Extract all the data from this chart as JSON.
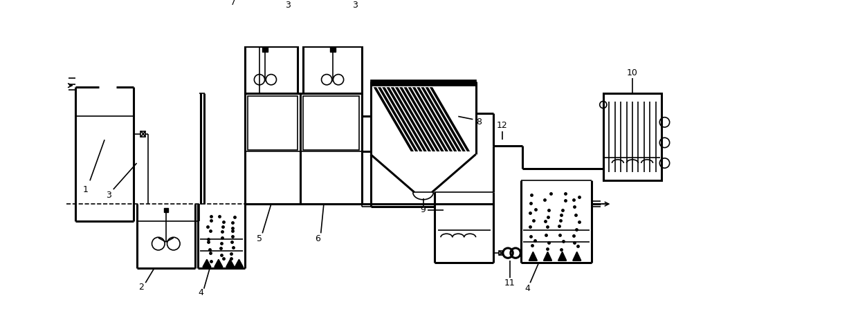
{
  "bg_color": "#ffffff",
  "lw": 1.2,
  "lw2": 2.2,
  "fig_width": 12.4,
  "fig_height": 4.5
}
